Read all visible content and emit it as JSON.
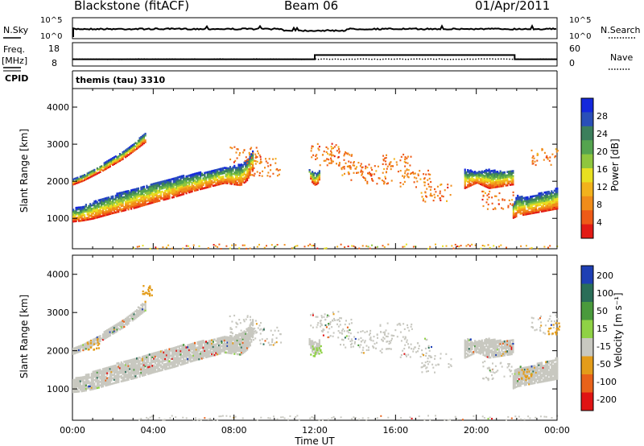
{
  "header": {
    "station": "Blackstone (fitACF)",
    "beam": "Beam 06",
    "date": "01/Apr/2011"
  },
  "top_panels": {
    "nsky_label": "N.Sky",
    "nsky_ticks": [
      "10^5",
      "10^0"
    ],
    "nsearch_label": "N.Search",
    "nsearch_ticks": [
      "10^5",
      "10^0"
    ],
    "freq_label_1": "Freq.",
    "freq_label_2": "[MHz]",
    "freq_ticks": [
      "18",
      "8"
    ],
    "nave_label": "Nave",
    "nave_ticks": [
      "60",
      "0"
    ],
    "cpid_label": "CPID",
    "cpid_value": "themis (tau) 3310"
  },
  "chart_data": [
    {
      "type": "heatmap",
      "name": "power",
      "xlabel": "",
      "ylabel": "Slant Range [km]",
      "xlim": [
        0,
        24
      ],
      "ylim": [
        180,
        4500
      ],
      "yticks": [
        1000,
        2000,
        3000,
        4000
      ],
      "colorbar": {
        "label": "Power [dB]",
        "ticks": [
          "4",
          "8",
          "12",
          "16",
          "20",
          "24",
          "28"
        ],
        "colors": [
          "#1428dc",
          "#2a4fb8",
          "#3c7f5c",
          "#55a44f",
          "#8fc63e",
          "#e8e021",
          "#f2b21c",
          "#f08c1a",
          "#ee5a17",
          "#e21a14"
        ]
      },
      "bands": [
        {
          "x": [
            0.0,
            0.4,
            1.0,
            2.0,
            3.0,
            4.0,
            5.0,
            6.0,
            7.0,
            7.5,
            8.0,
            8.3,
            8.6,
            8.9
          ],
          "lower": [
            900,
            920,
            980,
            1130,
            1260,
            1420,
            1560,
            1730,
            1870,
            1940,
            1900,
            1880,
            2000,
            2300
          ],
          "upper": [
            1250,
            1300,
            1440,
            1620,
            1800,
            1960,
            2080,
            2200,
            2300,
            2350,
            2400,
            2450,
            2550,
            2800
          ]
        },
        {
          "x": [
            0.0,
            0.5,
            1.5,
            2.5,
            3.0,
            3.6
          ],
          "lower": [
            1900,
            2000,
            2280,
            2600,
            2800,
            3050
          ],
          "upper": [
            2050,
            2150,
            2460,
            2800,
            3000,
            3320
          ]
        },
        {
          "x": [
            11.7,
            11.85,
            12.0,
            12.15,
            12.25
          ],
          "lower": [
            2150,
            1950,
            1880,
            1950,
            2150
          ],
          "upper": [
            2300,
            2250,
            2200,
            2250,
            2300
          ]
        },
        {
          "x": [
            19.4,
            20.0,
            20.6,
            21.2,
            21.8
          ],
          "lower": [
            1800,
            1950,
            1800,
            1850,
            1900
          ],
          "upper": [
            2300,
            2250,
            2300,
            2250,
            2300
          ]
        },
        {
          "x": [
            21.8,
            22.0,
            22.5,
            23.0,
            23.5,
            24.0
          ],
          "lower": [
            1000,
            1050,
            1100,
            1150,
            1200,
            1250
          ],
          "upper": [
            1400,
            1600,
            1550,
            1650,
            1700,
            1800
          ]
        }
      ],
      "scatter_x": [
        8.5,
        9.5,
        12.5,
        13.0,
        14.0,
        15.0,
        16.0,
        17.0,
        18.0,
        21.0,
        23.5
      ],
      "scatter_y": [
        2700,
        2400,
        2800,
        2600,
        2300,
        2200,
        2500,
        2100,
        1700,
        1500,
        2700
      ],
      "ground_scatter_x": [
        3.0,
        24.0
      ],
      "ground_scatter_y": [
        180,
        320
      ]
    },
    {
      "type": "heatmap",
      "name": "velocity",
      "xlabel": "Time UT",
      "ylabel": "Slant Range [km]",
      "xlim": [
        0,
        24
      ],
      "ylim": [
        180,
        4500
      ],
      "xticks": [
        "00:00",
        "04:00",
        "08:00",
        "12:00",
        "16:00",
        "20:00",
        "00:00"
      ],
      "yticks": [
        1000,
        2000,
        3000,
        4000
      ],
      "colorbar": {
        "label": "Velocity [m s⁻¹]",
        "ticks": [
          "200",
          "100",
          "50",
          "15",
          "-15",
          "-50",
          "-100",
          "-200"
        ],
        "colors": [
          "#1e3fb4",
          "#2a6e58",
          "#4a9a3c",
          "#8fd245",
          "#c8c8c0",
          "#e39c1a",
          "#e8621a",
          "#e01414"
        ]
      },
      "dominant_color": "#c8c8c0",
      "accents": [
        {
          "x": 1.0,
          "y": 2200,
          "color": "#e39c1a"
        },
        {
          "x": 3.7,
          "y": 3600,
          "color": "#e39c1a"
        },
        {
          "x": 12.0,
          "y": 2000,
          "color": "#8fd245"
        },
        {
          "x": 23.8,
          "y": 2600,
          "color": "#e39c1a"
        },
        {
          "x": 22.5,
          "y": 1400,
          "color": "#e39c1a"
        }
      ]
    }
  ]
}
